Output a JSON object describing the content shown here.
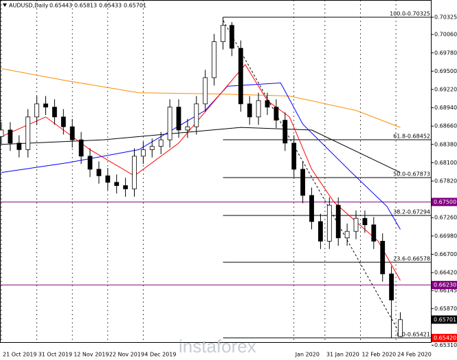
{
  "chart_data": {
    "type": "candlestick",
    "title": "AUDUSD,Daily",
    "header_values": [
      0.65443,
      0.65813,
      0.65433,
      0.65701
    ],
    "watermark": "instaforex",
    "x": [
      0,
      2,
      4,
      6,
      8,
      10,
      12,
      14,
      16,
      18,
      20,
      22,
      24,
      26,
      28,
      30,
      32,
      34,
      36,
      38,
      40,
      42,
      44,
      46,
      48,
      50,
      52,
      54,
      56,
      58,
      60,
      62,
      64,
      66,
      68,
      70,
      72,
      74,
      76,
      78,
      80,
      82,
      84,
      86,
      88,
      90
    ],
    "open": [
      0.685,
      0.686,
      0.684,
      0.683,
      0.688,
      0.69,
      0.6895,
      0.688,
      0.6865,
      0.6845,
      0.682,
      0.68,
      0.679,
      0.678,
      0.6775,
      0.677,
      0.682,
      0.683,
      0.6835,
      0.6845,
      0.6895,
      0.686,
      0.6865,
      0.69,
      0.694,
      0.6995,
      0.702,
      0.6985,
      0.69,
      0.688,
      0.6905,
      0.6895,
      0.6875,
      0.684,
      0.68,
      0.676,
      0.672,
      0.669,
      0.6745,
      0.6695,
      0.6705,
      0.6725,
      0.6715,
      0.669,
      0.664,
      0.65443
    ],
    "high": [
      0.6872,
      0.6872,
      0.6852,
      0.6892,
      0.6912,
      0.6912,
      0.6907,
      0.6892,
      0.6877,
      0.6857,
      0.6832,
      0.6812,
      0.6802,
      0.6792,
      0.6787,
      0.6832,
      0.6842,
      0.6847,
      0.6857,
      0.6907,
      0.6907,
      0.6877,
      0.6912,
      0.6952,
      0.7007,
      0.70325,
      0.7025,
      0.6997,
      0.6912,
      0.6917,
      0.6917,
      0.6907,
      0.6887,
      0.6852,
      0.6812,
      0.6772,
      0.6732,
      0.6757,
      0.6757,
      0.6717,
      0.6737,
      0.6737,
      0.6727,
      0.6702,
      0.6652,
      0.65813
    ],
    "low": [
      0.6838,
      0.6828,
      0.6818,
      0.6818,
      0.6868,
      0.6883,
      0.6868,
      0.6853,
      0.6833,
      0.6808,
      0.6788,
      0.6778,
      0.6768,
      0.6763,
      0.6758,
      0.6758,
      0.6808,
      0.6818,
      0.6823,
      0.6833,
      0.6848,
      0.6848,
      0.6853,
      0.6888,
      0.6928,
      0.6983,
      0.6973,
      0.6888,
      0.6868,
      0.6868,
      0.6883,
      0.6863,
      0.6828,
      0.6788,
      0.6748,
      0.6708,
      0.6678,
      0.6678,
      0.6683,
      0.6683,
      0.6693,
      0.6703,
      0.6678,
      0.6628,
      0.6542,
      0.65433
    ],
    "close": [
      0.686,
      0.684,
      0.683,
      0.688,
      0.69,
      0.6895,
      0.688,
      0.6865,
      0.6845,
      0.682,
      0.68,
      0.679,
      0.678,
      0.6775,
      0.677,
      0.682,
      0.683,
      0.6835,
      0.6845,
      0.6895,
      0.686,
      0.6865,
      0.69,
      0.694,
      0.6995,
      0.702,
      0.6985,
      0.69,
      0.688,
      0.6905,
      0.6895,
      0.6875,
      0.684,
      0.68,
      0.676,
      0.672,
      0.669,
      0.6745,
      0.6695,
      0.6705,
      0.6725,
      0.6715,
      0.669,
      0.664,
      0.66,
      0.65701
    ],
    "lines": [
      {
        "color": "#ff8c00",
        "x": [
          0,
          15,
          31,
          50,
          65,
          80,
          90
        ],
        "values": [
          0.6954,
          0.6935,
          0.6917,
          0.6915,
          0.6912,
          0.689,
          0.6864
        ]
      },
      {
        "color": "#000000",
        "x": [
          0,
          23,
          54,
          70,
          90
        ],
        "values": [
          0.6838,
          0.6845,
          0.6864,
          0.686,
          0.6795
        ]
      },
      {
        "color": "#0000ff",
        "x": [
          0,
          15,
          31,
          46,
          51,
          63,
          68,
          79,
          87,
          90
        ],
        "values": [
          0.6795,
          0.681,
          0.683,
          0.689,
          0.6927,
          0.6932,
          0.6869,
          0.6795,
          0.6743,
          0.6708
        ]
      },
      {
        "color": "#ff0000",
        "x": [
          0,
          10,
          20,
          30,
          40,
          50,
          55,
          60,
          65,
          70,
          75,
          80,
          85,
          90
        ],
        "values": [
          0.685,
          0.688,
          0.683,
          0.679,
          0.684,
          0.692,
          0.696,
          0.6905,
          0.688,
          0.68,
          0.675,
          0.672,
          0.669,
          0.663
        ]
      }
    ],
    "fib_start": 50,
    "fib": [
      {
        "value": 0.70325,
        "label": "100.0-0.70325"
      },
      {
        "value": 0.68452,
        "label": "61.8-0.68452"
      },
      {
        "value": 0.67873,
        "label": "50.0-0.67873"
      },
      {
        "value": 0.67294,
        "label": "38.2-0.67294"
      },
      {
        "value": 0.66578,
        "label": "23.6-0.66578"
      },
      {
        "value": 0.65421,
        "label": "0.0-0.65421"
      }
    ],
    "price_marks": [
      {
        "value": 0.675,
        "label": "0.67500",
        "color": "#800080"
      },
      {
        "value": 0.6623,
        "label": "0.66230",
        "color": "#800080"
      },
      {
        "value": 0.65701,
        "label": "0.65701",
        "color": "#000000"
      },
      {
        "value": 0.6542,
        "label": "0.65420",
        "color": "#ff0000"
      }
    ],
    "xlim": [
      -0.31,
      97.05
    ],
    "ylim": [
      0.65357,
      0.70588
    ],
    "xticks": [
      {
        "value": 0,
        "label": "21 Oct 2019"
      },
      {
        "value": 8,
        "label": "31 Oct 2019"
      },
      {
        "value": 16,
        "label": "12 Nov 2019"
      },
      {
        "value": 24,
        "label": "22 Nov 2019"
      },
      {
        "value": 32,
        "label": "4 Dec 2019"
      },
      {
        "value": 66,
        "label": "Jan 2020"
      },
      {
        "value": 73,
        "label": "31 Jan 2020"
      },
      {
        "value": 81,
        "label": "12 Feb 2020"
      },
      {
        "value": 89,
        "label": "24 Feb 2020"
      }
    ],
    "yticks": [
      {
        "value": 0.70325,
        "label": "0.70325"
      },
      {
        "value": 0.7006,
        "label": "0.70060"
      },
      {
        "value": 0.6978,
        "label": "0.69780"
      },
      {
        "value": 0.695,
        "label": "0.69500"
      },
      {
        "value": 0.6922,
        "label": "0.69220"
      },
      {
        "value": 0.6894,
        "label": "0.68940"
      },
      {
        "value": 0.6866,
        "label": "0.68660"
      },
      {
        "value": 0.6838,
        "label": "0.68380"
      },
      {
        "value": 0.681,
        "label": "0.68100"
      },
      {
        "value": 0.6782,
        "label": "0.67820"
      },
      {
        "value": 0.6726,
        "label": "0.67260"
      },
      {
        "value": 0.6698,
        "label": "0.66980"
      },
      {
        "value": 0.667,
        "label": "0.66700"
      },
      {
        "value": 0.6642,
        "label": "0.66420"
      },
      {
        "value": 0.66145,
        "label": "0.66145"
      },
      {
        "value": 0.6587,
        "label": "0.65870"
      },
      {
        "value": 0.6531,
        "label": "0.65310"
      }
    ]
  }
}
